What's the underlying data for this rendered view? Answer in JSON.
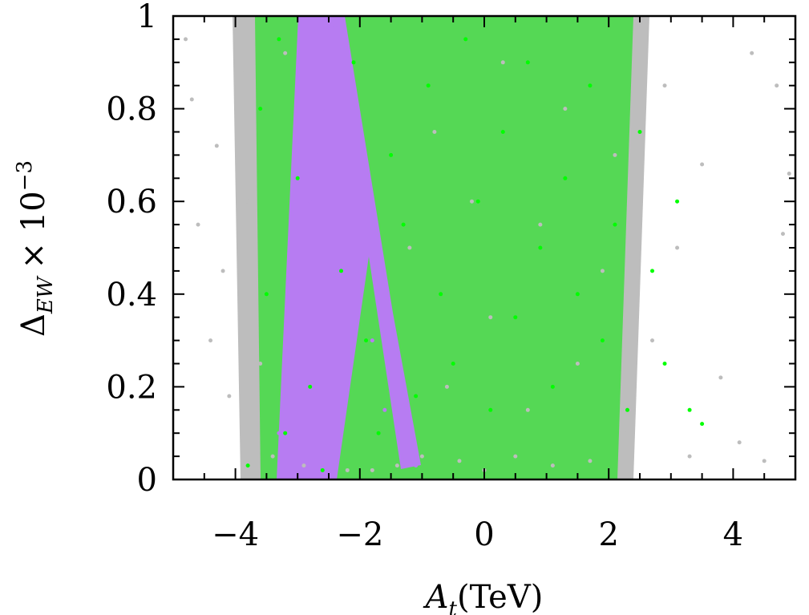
{
  "chart_data": {
    "type": "scatter",
    "xlabel": "A_t(TeV)",
    "xlabel_main": "A",
    "xlabel_sub": "t",
    "xlabel_unit": "(TeV)",
    "ylabel_main": "Δ",
    "ylabel_sub": "EW",
    "ylabel_rest": "× 10",
    "ylabel_exp": "−3",
    "xlim": [
      -5,
      5
    ],
    "ylim": [
      0,
      1
    ],
    "x_ticks": [
      -4,
      -2,
      0,
      2,
      4
    ],
    "x_tick_labels": [
      "−4",
      "−2",
      "0",
      "2",
      "4"
    ],
    "y_ticks": [
      0,
      0.2,
      0.4,
      0.6,
      0.8,
      1
    ],
    "y_tick_labels": [
      "0",
      "0.2",
      "0.4",
      "0.6",
      "0.8",
      "1"
    ],
    "grid": false,
    "series": [
      {
        "color": "#bdbdbd",
        "region": "broad band",
        "points": [
          [
            -4.8,
            0.95
          ],
          [
            -4.7,
            0.82
          ],
          [
            -4.6,
            0.55
          ],
          [
            -4.4,
            0.3
          ],
          [
            -4.3,
            0.72
          ],
          [
            -4.2,
            0.45
          ],
          [
            -4.1,
            0.18
          ],
          [
            -3.9,
            0.88
          ],
          [
            -3.8,
            0.6
          ],
          [
            -3.6,
            0.25
          ],
          [
            -3.4,
            0.05
          ],
          [
            -3.2,
            0.92
          ],
          [
            -2.9,
            0.03
          ],
          [
            -2.2,
            0.02
          ],
          [
            -1.8,
            0.02
          ],
          [
            -1.4,
            0.03
          ],
          [
            -1.2,
            0.5
          ],
          [
            -1.0,
            0.05
          ],
          [
            -0.8,
            0.75
          ],
          [
            -0.6,
            0.2
          ],
          [
            -0.4,
            0.04
          ],
          [
            -0.2,
            0.6
          ],
          [
            0.0,
            0.02
          ],
          [
            0.1,
            0.35
          ],
          [
            0.3,
            0.9
          ],
          [
            0.5,
            0.05
          ],
          [
            0.7,
            0.15
          ],
          [
            0.9,
            0.55
          ],
          [
            1.1,
            0.03
          ],
          [
            1.3,
            0.8
          ],
          [
            1.5,
            0.25
          ],
          [
            1.7,
            0.04
          ],
          [
            1.9,
            0.45
          ],
          [
            2.1,
            0.7
          ],
          [
            2.3,
            0.1
          ],
          [
            2.5,
            0.6
          ],
          [
            2.7,
            0.3
          ],
          [
            2.9,
            0.85
          ],
          [
            3.1,
            0.5
          ],
          [
            3.3,
            0.05
          ],
          [
            3.5,
            0.68
          ],
          [
            3.8,
            0.22
          ],
          [
            4.1,
            0.08
          ],
          [
            4.3,
            0.92
          ],
          [
            4.5,
            0.04
          ],
          [
            4.7,
            0.85
          ],
          [
            4.8,
            0.53
          ],
          [
            4.9,
            0.66
          ]
        ]
      },
      {
        "color": "#00ff00",
        "region": "band -3.8 to 3.5",
        "points": [
          [
            -3.8,
            0.03
          ],
          [
            -3.6,
            0.8
          ],
          [
            -3.5,
            0.4
          ],
          [
            -3.3,
            0.95
          ],
          [
            -3.2,
            0.1
          ],
          [
            -3.0,
            0.65
          ],
          [
            -2.8,
            0.2
          ],
          [
            -2.6,
            0.02
          ],
          [
            -2.3,
            0.45
          ],
          [
            -2.1,
            0.9
          ],
          [
            -1.9,
            0.3
          ],
          [
            -1.7,
            0.1
          ],
          [
            -1.5,
            0.7
          ],
          [
            -1.3,
            0.55
          ],
          [
            -1.1,
            0.18
          ],
          [
            -0.9,
            0.85
          ],
          [
            -0.7,
            0.4
          ],
          [
            -0.5,
            0.25
          ],
          [
            -0.3,
            0.95
          ],
          [
            -0.1,
            0.6
          ],
          [
            0.1,
            0.15
          ],
          [
            0.3,
            0.75
          ],
          [
            0.5,
            0.35
          ],
          [
            0.7,
            0.9
          ],
          [
            0.9,
            0.5
          ],
          [
            1.1,
            0.2
          ],
          [
            1.3,
            0.65
          ],
          [
            1.5,
            0.4
          ],
          [
            1.7,
            0.85
          ],
          [
            1.9,
            0.3
          ],
          [
            2.1,
            0.55
          ],
          [
            2.3,
            0.15
          ],
          [
            2.5,
            0.75
          ],
          [
            2.7,
            0.45
          ],
          [
            2.9,
            0.25
          ],
          [
            3.1,
            0.6
          ],
          [
            3.3,
            0.15
          ],
          [
            3.5,
            0.12
          ]
        ]
      },
      {
        "color": "#b77cf2",
        "region": "diagonal band",
        "points": [
          [
            -2.4,
            0.98
          ],
          [
            -2.5,
            0.9
          ],
          [
            -2.6,
            0.8
          ],
          [
            -2.7,
            0.7
          ],
          [
            -2.8,
            0.6
          ],
          [
            -2.9,
            0.5
          ],
          [
            -3.0,
            0.4
          ],
          [
            -3.1,
            0.3
          ],
          [
            -3.2,
            0.2
          ],
          [
            -3.3,
            0.1
          ],
          [
            -2.0,
            0.5
          ],
          [
            -1.8,
            0.3
          ],
          [
            -1.6,
            0.15
          ],
          [
            -1.3,
            0.05
          ],
          [
            -1.1,
            0.03
          ]
        ]
      }
    ]
  }
}
